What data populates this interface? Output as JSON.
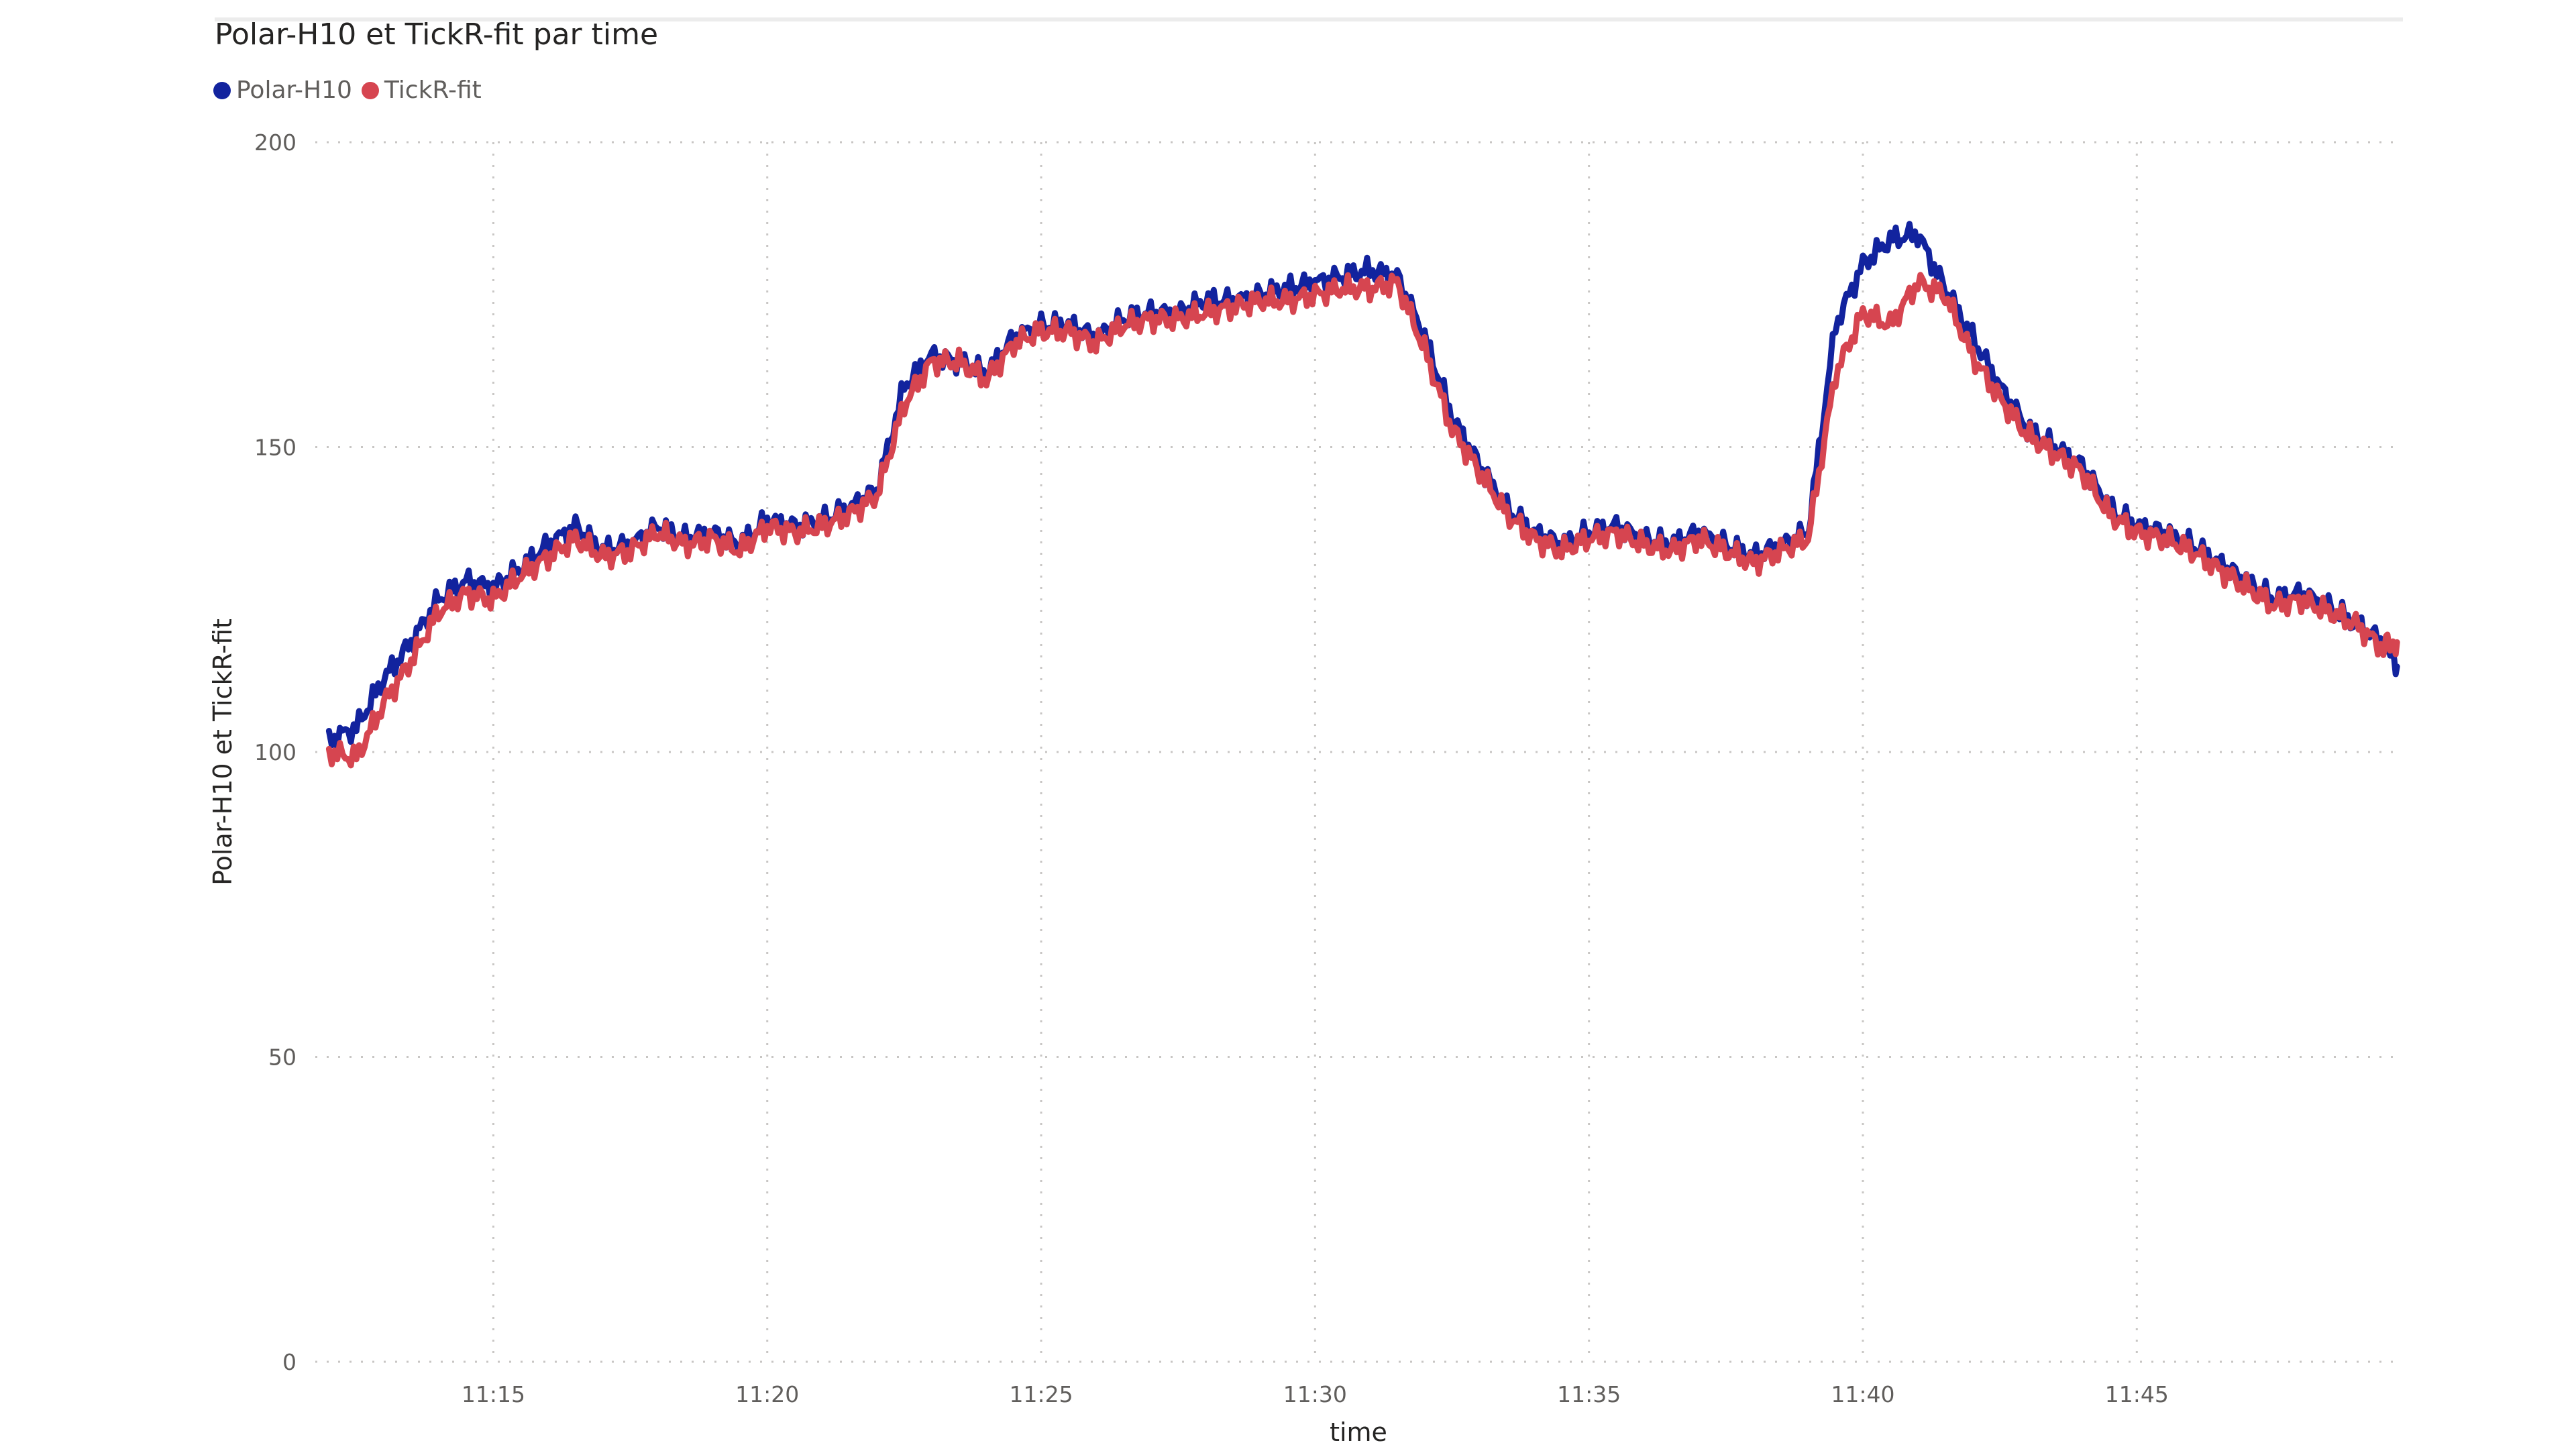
{
  "chart_data": {
    "type": "line",
    "title": "Polar-H10 et TickR-fit par time",
    "xlabel": "time",
    "ylabel": "Polar-H10 et TickR-fit",
    "ylim": [
      0,
      200
    ],
    "xlim": [
      "11:11:45",
      "11:49:50"
    ],
    "yticks": [
      "0",
      "50",
      "100",
      "150",
      "200"
    ],
    "xticks": [
      "11:15",
      "11:20",
      "11:25",
      "11:30",
      "11:35",
      "11:40",
      "11:45"
    ],
    "grid": true,
    "legend_position": "top-left",
    "x": [
      "11:12:00",
      "11:12:30",
      "11:13:00",
      "11:13:30",
      "11:14:00",
      "11:14:30",
      "11:15:00",
      "11:15:30",
      "11:16:00",
      "11:16:30",
      "11:17:00",
      "11:17:30",
      "11:18:00",
      "11:18:30",
      "11:19:00",
      "11:19:30",
      "11:20:00",
      "11:20:30",
      "11:21:00",
      "11:21:30",
      "11:22:00",
      "11:22:30",
      "11:23:00",
      "11:23:30",
      "11:24:00",
      "11:24:30",
      "11:25:00",
      "11:25:30",
      "11:26:00",
      "11:26:30",
      "11:27:00",
      "11:27:30",
      "11:28:00",
      "11:28:30",
      "11:29:00",
      "11:29:30",
      "11:30:00",
      "11:30:30",
      "11:31:00",
      "11:31:30",
      "11:32:00",
      "11:32:30",
      "11:33:00",
      "11:33:30",
      "11:34:00",
      "11:34:30",
      "11:35:00",
      "11:35:30",
      "11:36:00",
      "11:36:30",
      "11:37:00",
      "11:37:30",
      "11:38:00",
      "11:38:30",
      "11:39:00",
      "11:39:30",
      "11:40:00",
      "11:40:30",
      "11:41:00",
      "11:41:30",
      "11:42:00",
      "11:42:30",
      "11:43:00",
      "11:43:30",
      "11:44:00",
      "11:44:30",
      "11:45:00",
      "11:45:30",
      "11:46:00",
      "11:46:30",
      "11:47:00",
      "11:47:30",
      "11:48:00",
      "11:48:30",
      "11:49:00",
      "11:49:30",
      "11:49:45"
    ],
    "series": [
      {
        "name": "Polar-H10",
        "color": "#12239e",
        "values": [
          102,
          104,
          112,
          118,
          125,
          128,
          127,
          130,
          134,
          137,
          133,
          134,
          137,
          135,
          136,
          134,
          138,
          137,
          138,
          140,
          143,
          160,
          165,
          164,
          162,
          168,
          170,
          170,
          168,
          171,
          172,
          172,
          174,
          174,
          175,
          176,
          177,
          178,
          179,
          178,
          168,
          155,
          147,
          140,
          136,
          134,
          136,
          137,
          135,
          134,
          136,
          134,
          132,
          134,
          136,
          170,
          180,
          184,
          185,
          176,
          168,
          160,
          153,
          150,
          147,
          140,
          137,
          136,
          134,
          131,
          128,
          125,
          126,
          124,
          121,
          118,
          114
        ]
      },
      {
        "name": "TickR-fit",
        "color": "#d64550",
        "values": [
          100,
          99,
          108,
          115,
          123,
          126,
          125,
          129,
          132,
          135,
          132,
          133,
          136,
          134,
          135,
          133,
          137,
          136,
          137,
          139,
          142,
          157,
          164,
          164,
          161,
          167,
          169,
          169,
          167,
          170,
          171,
          171,
          172,
          173,
          174,
          174,
          175,
          176,
          176,
          177,
          166,
          153,
          146,
          139,
          135,
          133,
          135,
          136,
          134,
          133,
          135,
          133,
          131,
          133,
          135,
          162,
          172,
          170,
          177,
          175,
          165,
          158,
          152,
          149,
          146,
          139,
          136,
          135,
          133,
          130,
          127,
          124,
          125,
          123,
          121,
          117,
          118
        ]
      }
    ]
  }
}
